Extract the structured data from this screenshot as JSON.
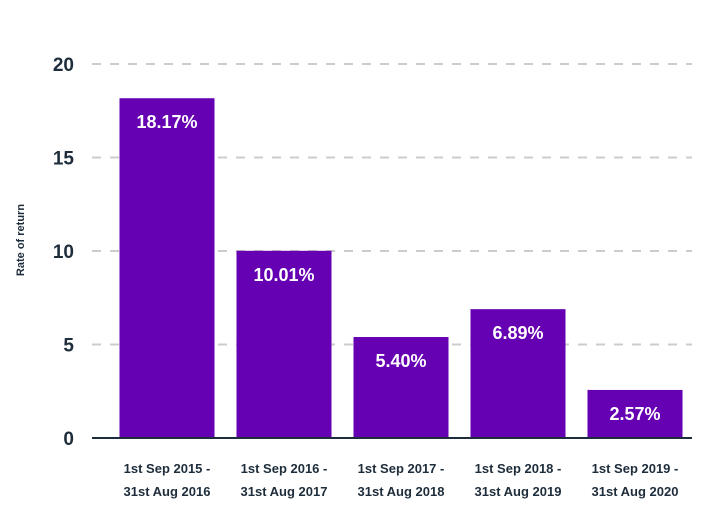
{
  "chart_data": {
    "type": "bar",
    "title": "",
    "xlabel": "",
    "ylabel": "Rate of return",
    "ylim": [
      0,
      20
    ],
    "yticks": [
      0,
      5,
      10,
      15,
      20
    ],
    "grid": true,
    "categories": [
      [
        "1st Sep 2015 -",
        "31st Aug 2016"
      ],
      [
        "1st Sep 2016 -",
        "31st Aug 2017"
      ],
      [
        "1st Sep 2017 -",
        "31st Aug 2018"
      ],
      [
        "1st Sep 2018 -",
        "31st Aug 2019"
      ],
      [
        "1st Sep 2019 -",
        "31st Aug 2020"
      ]
    ],
    "values": [
      18.17,
      10.01,
      5.4,
      6.89,
      2.57
    ],
    "data_labels": [
      "18.17%",
      "10.01%",
      "5.40%",
      "6.89%",
      "2.57%"
    ],
    "colors": {
      "bar": "#6600b3",
      "text": "#1e2d3b",
      "grid": "#cccccc",
      "axis": "#1e2d3b"
    }
  }
}
